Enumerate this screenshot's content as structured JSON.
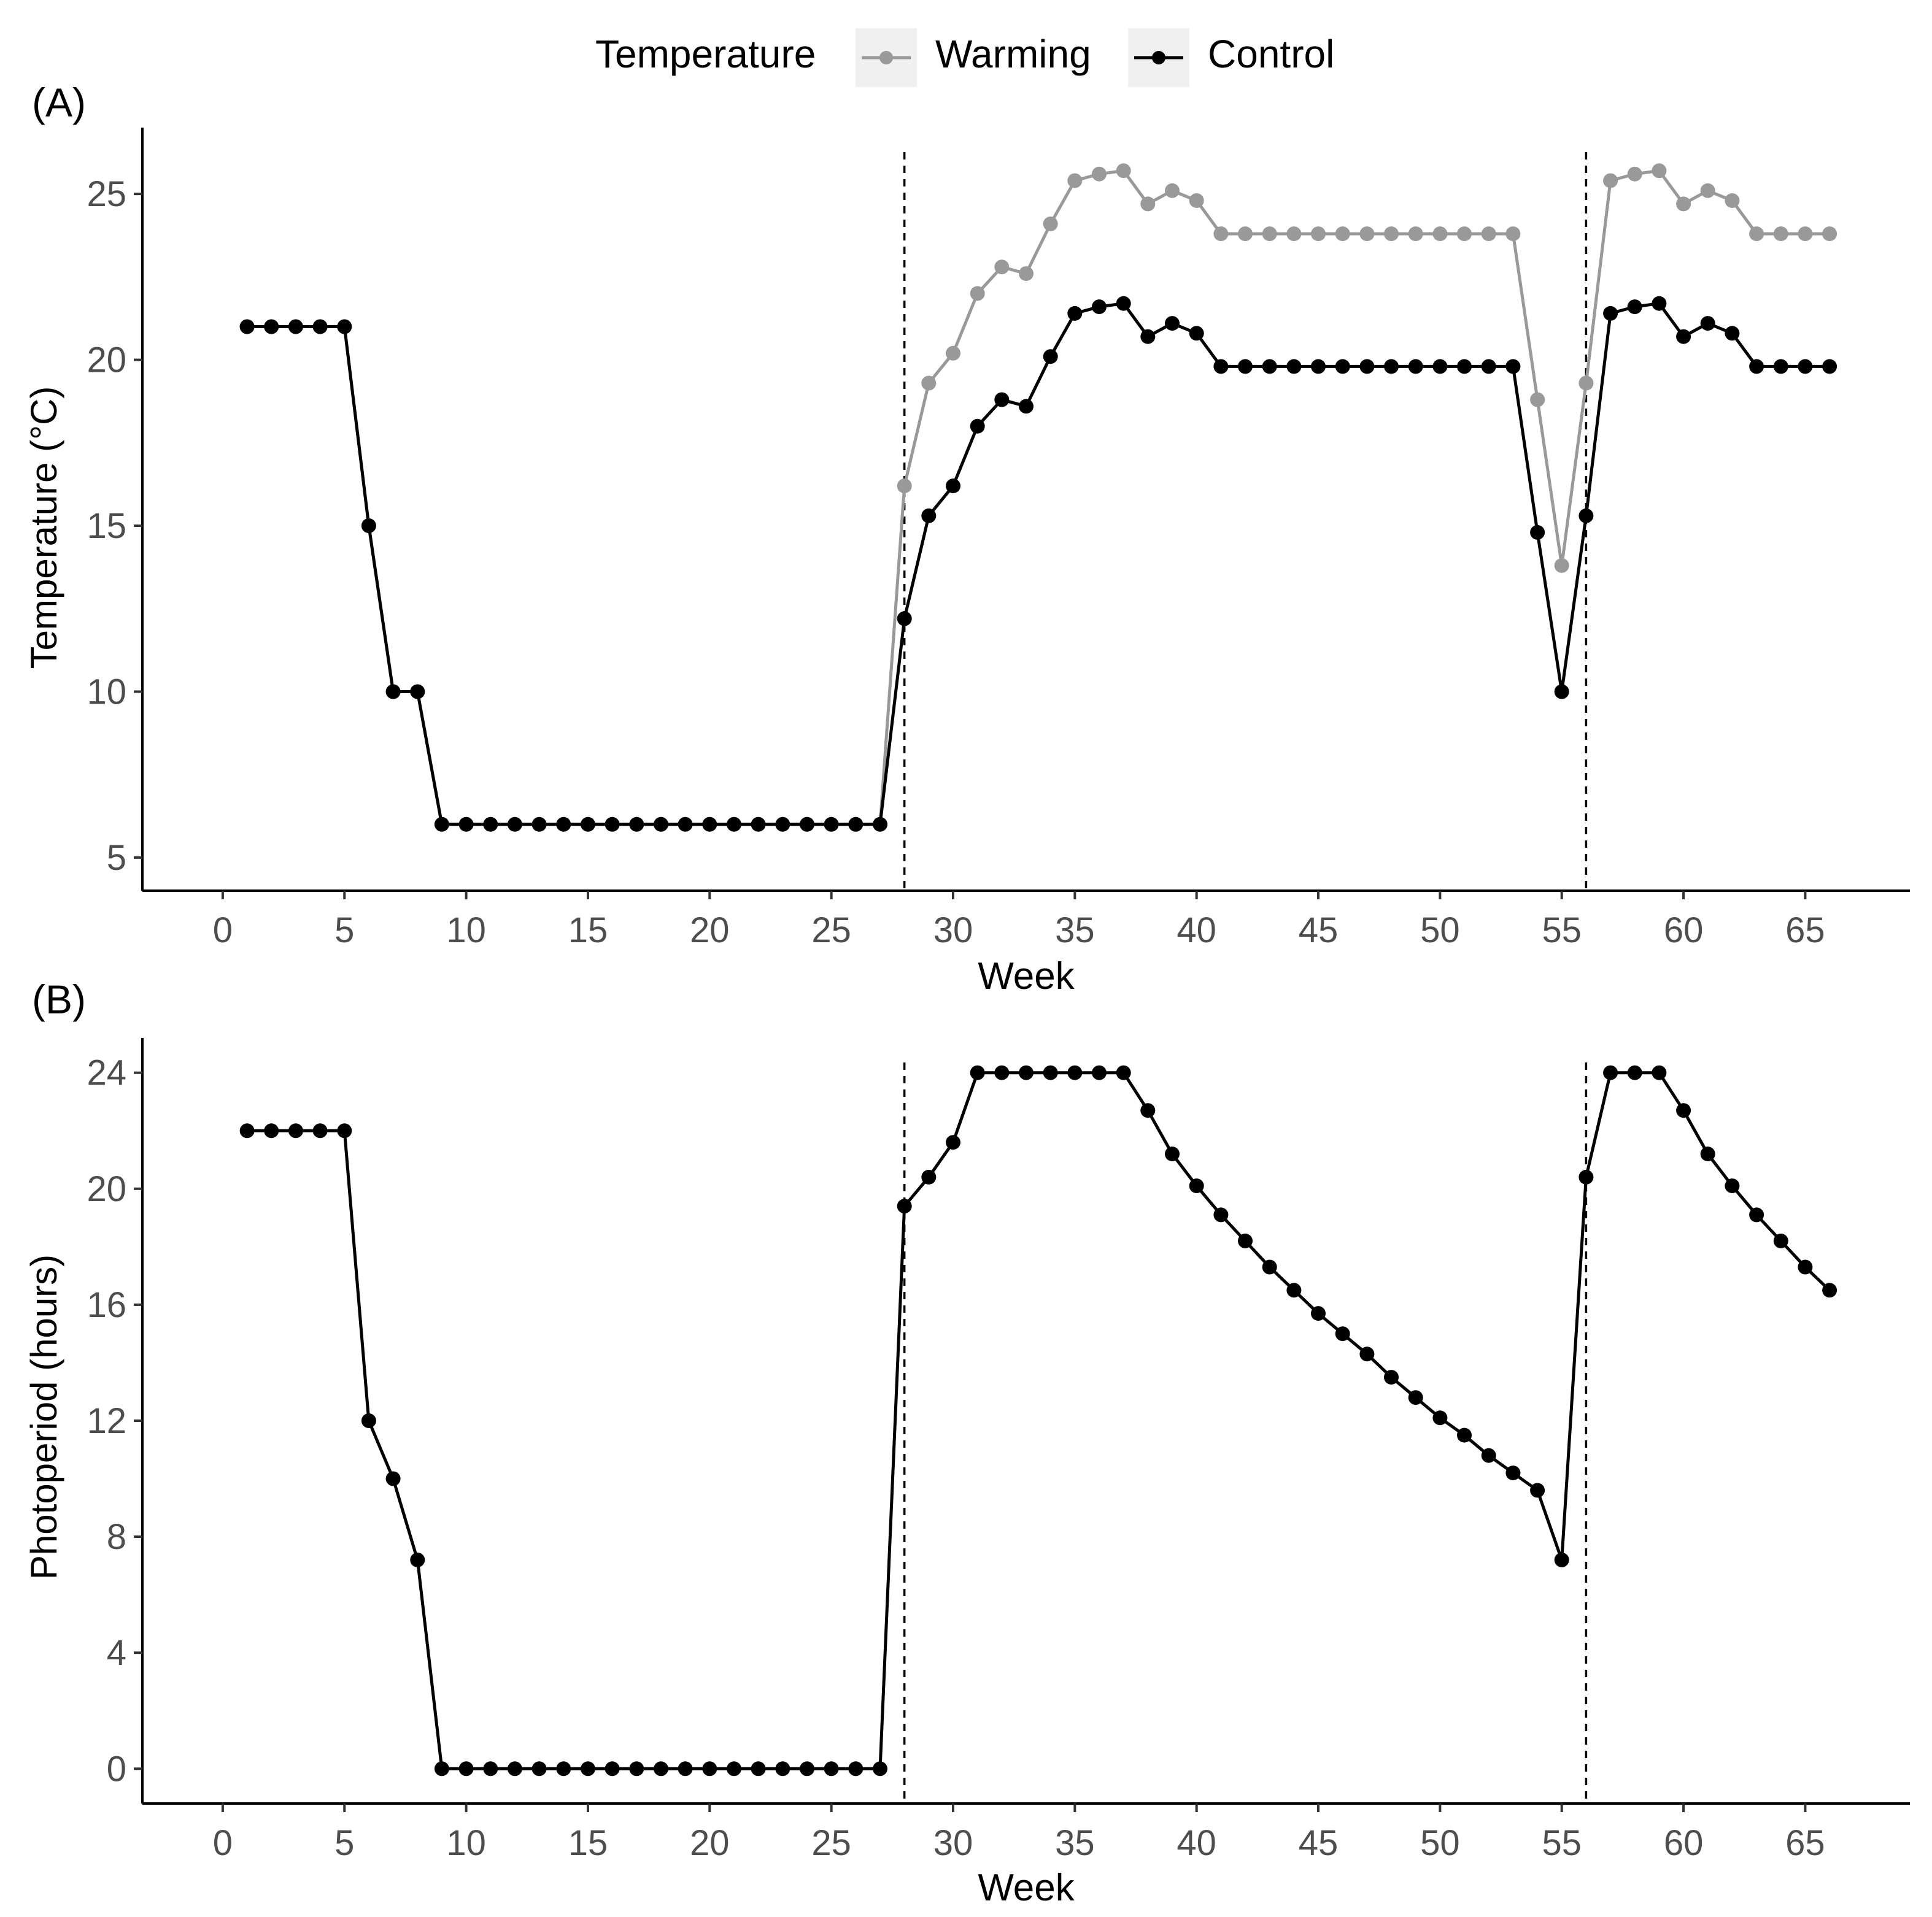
{
  "legend": {
    "title": "Temperature",
    "entries": [
      {
        "label": "Warming",
        "color": "#999999"
      },
      {
        "label": "Control",
        "color": "#000000"
      }
    ]
  },
  "chart_data": [
    {
      "type": "line",
      "panel_label": "(A)",
      "xlabel": "Week",
      "ylabel": "Temperature (°C)",
      "xlim": [
        -3.3,
        69.3
      ],
      "ylim": [
        4,
        27
      ],
      "xticks": [
        0,
        5,
        10,
        15,
        20,
        25,
        30,
        35,
        40,
        45,
        50,
        55,
        60,
        65
      ],
      "yticks": [
        5,
        10,
        15,
        20,
        25
      ],
      "vlines": [
        28,
        56
      ],
      "x": [
        1,
        2,
        3,
        4,
        5,
        6,
        7,
        8,
        9,
        10,
        11,
        12,
        13,
        14,
        15,
        16,
        17,
        18,
        19,
        20,
        21,
        22,
        23,
        24,
        25,
        26,
        27,
        28,
        29,
        30,
        31,
        32,
        33,
        34,
        35,
        36,
        37,
        38,
        39,
        40,
        41,
        42,
        43,
        44,
        45,
        46,
        47,
        48,
        49,
        50,
        51,
        52,
        53,
        54,
        55,
        56,
        57,
        58,
        59,
        60,
        61,
        62,
        63,
        64,
        65,
        66
      ],
      "series": [
        {
          "name": "Warming",
          "color": "#999999",
          "values": [
            21,
            21,
            21,
            21,
            21,
            15,
            10,
            10,
            6,
            6,
            6,
            6,
            6,
            6,
            6,
            6,
            6,
            6,
            6,
            6,
            6,
            6,
            6,
            6,
            6,
            6,
            6,
            16.2,
            19.3,
            20.2,
            22,
            22.8,
            22.6,
            24.1,
            25.4,
            25.6,
            25.7,
            24.7,
            25.1,
            24.8,
            23.8,
            23.8,
            23.8,
            23.8,
            23.8,
            23.8,
            23.8,
            23.8,
            23.8,
            23.8,
            23.8,
            23.8,
            23.8,
            18.8,
            13.8,
            19.3,
            25.4,
            25.6,
            25.7,
            24.7,
            25.1,
            24.8,
            23.8,
            23.8,
            23.8,
            23.8
          ]
        },
        {
          "name": "Control",
          "color": "#000000",
          "values": [
            21,
            21,
            21,
            21,
            21,
            15,
            10,
            10,
            6,
            6,
            6,
            6,
            6,
            6,
            6,
            6,
            6,
            6,
            6,
            6,
            6,
            6,
            6,
            6,
            6,
            6,
            6,
            12.2,
            15.3,
            16.2,
            18,
            18.8,
            18.6,
            20.1,
            21.4,
            21.6,
            21.7,
            20.7,
            21.1,
            20.8,
            19.8,
            19.8,
            19.8,
            19.8,
            19.8,
            19.8,
            19.8,
            19.8,
            19.8,
            19.8,
            19.8,
            19.8,
            19.8,
            14.8,
            10,
            15.3,
            21.4,
            21.6,
            21.7,
            20.7,
            21.1,
            20.8,
            19.8,
            19.8,
            19.8,
            19.8
          ]
        }
      ]
    },
    {
      "type": "line",
      "panel_label": "(B)",
      "xlabel": "Week",
      "ylabel": "Photoperiod (hours)",
      "xlim": [
        -3.3,
        69.3
      ],
      "ylim": [
        -1.2,
        25.2
      ],
      "xticks": [
        0,
        5,
        10,
        15,
        20,
        25,
        30,
        35,
        40,
        45,
        50,
        55,
        60,
        65
      ],
      "yticks": [
        0,
        4,
        8,
        12,
        16,
        20,
        24
      ],
      "vlines": [
        28,
        56
      ],
      "x": [
        1,
        2,
        3,
        4,
        5,
        6,
        7,
        8,
        9,
        10,
        11,
        12,
        13,
        14,
        15,
        16,
        17,
        18,
        19,
        20,
        21,
        22,
        23,
        24,
        25,
        26,
        27,
        28,
        29,
        30,
        31,
        32,
        33,
        34,
        35,
        36,
        37,
        38,
        39,
        40,
        41,
        42,
        43,
        44,
        45,
        46,
        47,
        48,
        49,
        50,
        51,
        52,
        53,
        54,
        55,
        56,
        57,
        58,
        59,
        60,
        61,
        62,
        63,
        64,
        65,
        66
      ],
      "series": [
        {
          "name": "Photoperiod",
          "color": "#000000",
          "values": [
            22,
            22,
            22,
            22,
            22,
            12,
            10,
            7.2,
            0,
            0,
            0,
            0,
            0,
            0,
            0,
            0,
            0,
            0,
            0,
            0,
            0,
            0,
            0,
            0,
            0,
            0,
            0,
            19.4,
            20.4,
            21.6,
            24,
            24,
            24,
            24,
            24,
            24,
            24,
            22.7,
            21.2,
            20.1,
            19.1,
            18.2,
            17.3,
            16.5,
            15.7,
            15,
            14.3,
            13.5,
            12.8,
            12.1,
            11.5,
            10.8,
            10.2,
            9.6,
            7.2,
            20.4,
            24,
            24,
            24,
            22.7,
            21.2,
            20.1,
            19.1,
            18.2,
            17.3,
            16.5
          ]
        }
      ]
    }
  ]
}
